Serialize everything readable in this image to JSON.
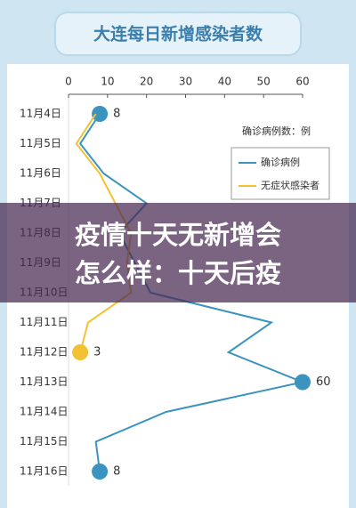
{
  "chart_data": {
    "type": "line",
    "orientation": "horizontal",
    "title": "大连每日新增感染者数",
    "unit_note": "确诊病例数：例",
    "categories": [
      "11月4日",
      "11月5日",
      "11月6日",
      "11月7日",
      "11月8日",
      "11月9日",
      "11月10日",
      "11月11日",
      "11月12日",
      "11月13日",
      "11月14日",
      "11月15日",
      "11月16日"
    ],
    "series": [
      {
        "name": "确诊病例",
        "color": "#3b93bf",
        "values": [
          8,
          3,
          9,
          20,
          13,
          17,
          21,
          52,
          41,
          60,
          25,
          7,
          8
        ]
      },
      {
        "name": "无症状感染者",
        "color": "#f2c232",
        "values": [
          7,
          2,
          8,
          12,
          16,
          15,
          16,
          5,
          3,
          null,
          null,
          null,
          null
        ]
      }
    ],
    "xlim": [
      0,
      60
    ],
    "xticks": [
      0,
      10,
      20,
      30,
      40,
      50,
      60
    ]
  },
  "overlay": {
    "lines": [
      "疫情十天无新增会",
      "怎么样：十天后疫"
    ]
  }
}
